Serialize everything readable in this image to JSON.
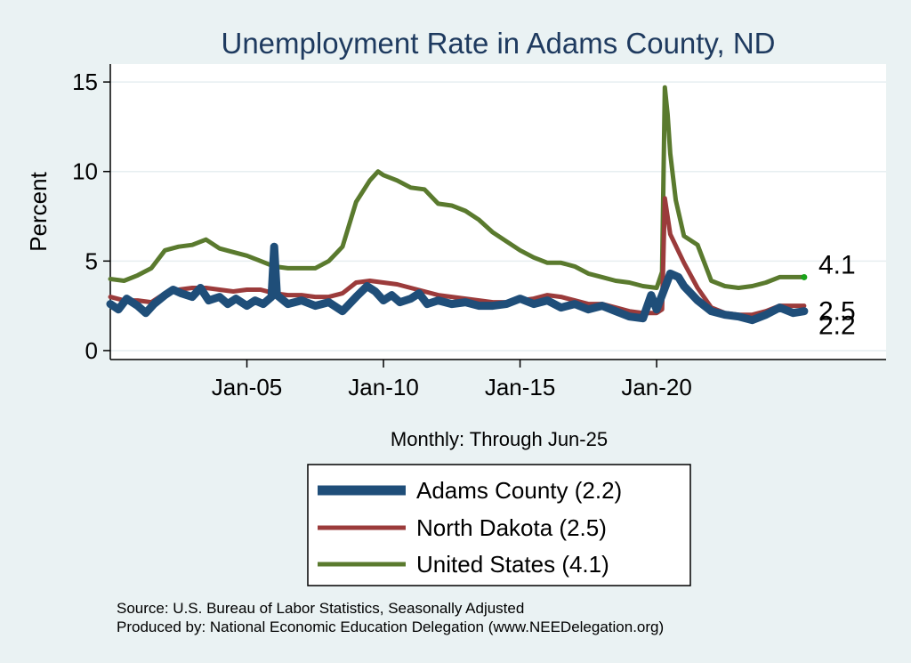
{
  "chart_data": {
    "type": "line",
    "title": "Unemployment Rate in Adams  County, ND",
    "xlabel": "Monthly: Through Jun-25",
    "ylabel": "Percent",
    "ylim": [
      -0.5,
      16
    ],
    "yticks": [
      0,
      5,
      10,
      15
    ],
    "xlim": [
      2000.0,
      2028.4
    ],
    "xticks": [
      {
        "label": "Jan-05",
        "value": 2005.0
      },
      {
        "label": "Jan-10",
        "value": 2010.0
      },
      {
        "label": "Jan-15",
        "value": 2015.0
      },
      {
        "label": "Jan-20",
        "value": 2020.0
      }
    ],
    "grid": true,
    "series": [
      {
        "name": "United States",
        "legend": "United States (4.1)",
        "color": "#5a7a2e",
        "end_label": "4.1",
        "points": [
          [
            2000.0,
            4.0
          ],
          [
            2000.5,
            3.9
          ],
          [
            2001.0,
            4.2
          ],
          [
            2001.5,
            4.6
          ],
          [
            2002.0,
            5.6
          ],
          [
            2002.5,
            5.8
          ],
          [
            2003.0,
            5.9
          ],
          [
            2003.5,
            6.2
          ],
          [
            2004.0,
            5.7
          ],
          [
            2004.5,
            5.5
          ],
          [
            2005.0,
            5.3
          ],
          [
            2005.5,
            5.0
          ],
          [
            2006.0,
            4.7
          ],
          [
            2006.5,
            4.6
          ],
          [
            2007.0,
            4.6
          ],
          [
            2007.5,
            4.6
          ],
          [
            2008.0,
            5.0
          ],
          [
            2008.5,
            5.8
          ],
          [
            2009.0,
            8.3
          ],
          [
            2009.5,
            9.5
          ],
          [
            2009.8,
            10.0
          ],
          [
            2010.0,
            9.8
          ],
          [
            2010.5,
            9.5
          ],
          [
            2011.0,
            9.1
          ],
          [
            2011.5,
            9.0
          ],
          [
            2012.0,
            8.2
          ],
          [
            2012.5,
            8.1
          ],
          [
            2013.0,
            7.8
          ],
          [
            2013.5,
            7.3
          ],
          [
            2014.0,
            6.6
          ],
          [
            2014.5,
            6.1
          ],
          [
            2015.0,
            5.6
          ],
          [
            2015.5,
            5.2
          ],
          [
            2016.0,
            4.9
          ],
          [
            2016.5,
            4.9
          ],
          [
            2017.0,
            4.7
          ],
          [
            2017.5,
            4.3
          ],
          [
            2018.0,
            4.1
          ],
          [
            2018.5,
            3.9
          ],
          [
            2019.0,
            3.8
          ],
          [
            2019.5,
            3.6
          ],
          [
            2020.0,
            3.5
          ],
          [
            2020.2,
            4.4
          ],
          [
            2020.3,
            14.7
          ],
          [
            2020.4,
            13.2
          ],
          [
            2020.5,
            11.0
          ],
          [
            2020.7,
            8.4
          ],
          [
            2021.0,
            6.4
          ],
          [
            2021.5,
            5.9
          ],
          [
            2022.0,
            3.9
          ],
          [
            2022.5,
            3.6
          ],
          [
            2023.0,
            3.5
          ],
          [
            2023.5,
            3.6
          ],
          [
            2024.0,
            3.8
          ],
          [
            2024.5,
            4.1
          ],
          [
            2025.0,
            4.1
          ],
          [
            2025.4,
            4.1
          ]
        ]
      },
      {
        "name": "North Dakota",
        "legend": "North Dakota (2.5)",
        "color": "#9b3b3b",
        "end_label": "2.5",
        "points": [
          [
            2000.0,
            3.0
          ],
          [
            2000.5,
            2.8
          ],
          [
            2001.0,
            2.8
          ],
          [
            2001.5,
            2.7
          ],
          [
            2002.0,
            3.2
          ],
          [
            2002.5,
            3.4
          ],
          [
            2003.0,
            3.5
          ],
          [
            2003.5,
            3.5
          ],
          [
            2004.0,
            3.4
          ],
          [
            2004.5,
            3.3
          ],
          [
            2005.0,
            3.4
          ],
          [
            2005.5,
            3.4
          ],
          [
            2006.0,
            3.2
          ],
          [
            2006.5,
            3.1
          ],
          [
            2007.0,
            3.1
          ],
          [
            2007.5,
            3.0
          ],
          [
            2008.0,
            3.0
          ],
          [
            2008.5,
            3.2
          ],
          [
            2009.0,
            3.8
          ],
          [
            2009.5,
            3.9
          ],
          [
            2010.0,
            3.8
          ],
          [
            2010.5,
            3.7
          ],
          [
            2011.0,
            3.5
          ],
          [
            2011.5,
            3.3
          ],
          [
            2012.0,
            3.1
          ],
          [
            2012.5,
            3.0
          ],
          [
            2013.0,
            2.9
          ],
          [
            2013.5,
            2.8
          ],
          [
            2014.0,
            2.7
          ],
          [
            2014.5,
            2.7
          ],
          [
            2015.0,
            2.8
          ],
          [
            2015.5,
            2.9
          ],
          [
            2016.0,
            3.1
          ],
          [
            2016.5,
            3.0
          ],
          [
            2017.0,
            2.8
          ],
          [
            2017.5,
            2.6
          ],
          [
            2018.0,
            2.6
          ],
          [
            2018.5,
            2.4
          ],
          [
            2019.0,
            2.2
          ],
          [
            2019.5,
            2.1
          ],
          [
            2020.0,
            2.1
          ],
          [
            2020.2,
            2.3
          ],
          [
            2020.3,
            8.5
          ],
          [
            2020.5,
            6.5
          ],
          [
            2021.0,
            4.9
          ],
          [
            2021.5,
            3.5
          ],
          [
            2022.0,
            2.4
          ],
          [
            2022.5,
            2.1
          ],
          [
            2023.0,
            2.0
          ],
          [
            2023.5,
            2.0
          ],
          [
            2024.0,
            2.2
          ],
          [
            2024.5,
            2.5
          ],
          [
            2025.0,
            2.5
          ],
          [
            2025.4,
            2.5
          ]
        ]
      },
      {
        "name": "Adams  County",
        "legend": "Adams  County (2.2)",
        "color": "#1f4e79",
        "end_label": "2.2",
        "points": [
          [
            2000.0,
            2.6
          ],
          [
            2000.3,
            2.3
          ],
          [
            2000.6,
            2.9
          ],
          [
            2001.0,
            2.5
          ],
          [
            2001.3,
            2.1
          ],
          [
            2001.6,
            2.6
          ],
          [
            2002.0,
            3.1
          ],
          [
            2002.3,
            3.4
          ],
          [
            2002.6,
            3.2
          ],
          [
            2003.0,
            3.0
          ],
          [
            2003.3,
            3.5
          ],
          [
            2003.6,
            2.8
          ],
          [
            2004.0,
            3.0
          ],
          [
            2004.3,
            2.6
          ],
          [
            2004.6,
            2.9
          ],
          [
            2005.0,
            2.5
          ],
          [
            2005.3,
            2.8
          ],
          [
            2005.6,
            2.6
          ],
          [
            2005.9,
            3.0
          ],
          [
            2006.0,
            5.8
          ],
          [
            2006.1,
            3.1
          ],
          [
            2006.5,
            2.6
          ],
          [
            2007.0,
            2.8
          ],
          [
            2007.5,
            2.5
          ],
          [
            2008.0,
            2.7
          ],
          [
            2008.5,
            2.2
          ],
          [
            2009.0,
            3.0
          ],
          [
            2009.4,
            3.6
          ],
          [
            2009.7,
            3.3
          ],
          [
            2010.0,
            2.8
          ],
          [
            2010.3,
            3.1
          ],
          [
            2010.6,
            2.7
          ],
          [
            2011.0,
            2.9
          ],
          [
            2011.3,
            3.2
          ],
          [
            2011.6,
            2.6
          ],
          [
            2012.0,
            2.8
          ],
          [
            2012.5,
            2.6
          ],
          [
            2013.0,
            2.7
          ],
          [
            2013.5,
            2.5
          ],
          [
            2014.0,
            2.5
          ],
          [
            2014.5,
            2.6
          ],
          [
            2015.0,
            2.9
          ],
          [
            2015.5,
            2.6
          ],
          [
            2016.0,
            2.8
          ],
          [
            2016.5,
            2.4
          ],
          [
            2017.0,
            2.6
          ],
          [
            2017.5,
            2.3
          ],
          [
            2018.0,
            2.5
          ],
          [
            2018.5,
            2.2
          ],
          [
            2019.0,
            1.9
          ],
          [
            2019.5,
            1.8
          ],
          [
            2019.8,
            3.1
          ],
          [
            2020.0,
            2.3
          ],
          [
            2020.3,
            3.5
          ],
          [
            2020.5,
            4.3
          ],
          [
            2020.8,
            4.1
          ],
          [
            2021.0,
            3.6
          ],
          [
            2021.5,
            2.8
          ],
          [
            2022.0,
            2.2
          ],
          [
            2022.5,
            2.0
          ],
          [
            2023.0,
            1.9
          ],
          [
            2023.5,
            1.7
          ],
          [
            2024.0,
            2.0
          ],
          [
            2024.5,
            2.4
          ],
          [
            2025.0,
            2.1
          ],
          [
            2025.4,
            2.2
          ]
        ]
      }
    ],
    "source_lines": [
      "Source: U.S. Bureau of Labor Statistics, Seasonally Adjusted",
      "Produced by: National Economic Education Delegation (www.NEEDelegation.org)"
    ]
  }
}
